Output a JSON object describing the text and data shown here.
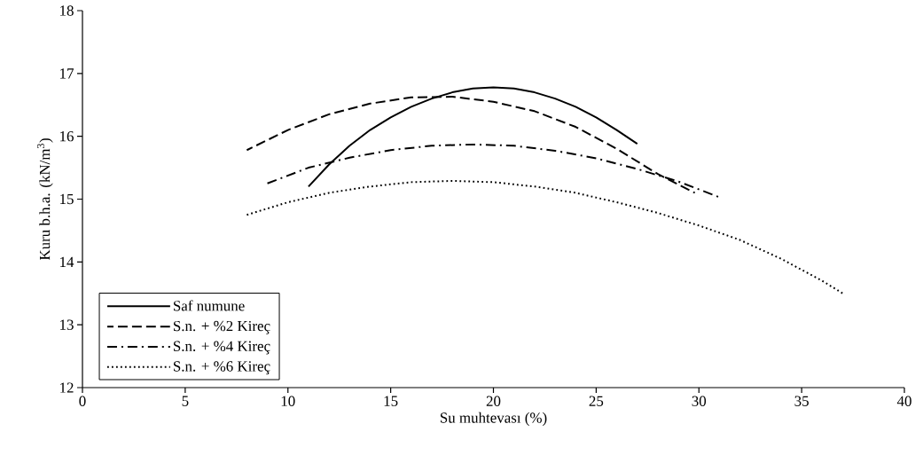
{
  "chart_data": {
    "type": "line",
    "xlabel": "Su muhtevası (%)",
    "ylabel": "Kuru b.h.a. (kN/m$^{3}$)",
    "xlim": [
      0,
      40
    ],
    "xticks": [
      0,
      5,
      10,
      15,
      20,
      25,
      30,
      35,
      40
    ],
    "ylim": [
      12,
      18
    ],
    "yticks": [
      12,
      13,
      14,
      15,
      16,
      17,
      18
    ],
    "grid": false,
    "legend": "bottom left",
    "marker": "none",
    "series": [
      {
        "name": "Saf numune",
        "color": "#000000",
        "line_style": "solid",
        "x": [
          11,
          12,
          13,
          14,
          15,
          16,
          17,
          18,
          19,
          20,
          21,
          22,
          23,
          24,
          25,
          26,
          27
        ],
        "values": [
          15.2,
          15.55,
          15.85,
          16.1,
          16.3,
          16.47,
          16.6,
          16.7,
          16.76,
          16.78,
          16.76,
          16.7,
          16.6,
          16.47,
          16.3,
          16.1,
          15.88
        ]
      },
      {
        "name": "S.n. + %2 Kireç",
        "color": "#000000",
        "line_style": "dashed",
        "x": [
          8,
          10,
          12,
          14,
          16,
          18,
          20,
          22,
          24,
          26,
          28,
          29.8
        ],
        "values": [
          15.78,
          16.1,
          16.35,
          16.52,
          16.62,
          16.63,
          16.55,
          16.4,
          16.15,
          15.8,
          15.4,
          15.1
        ]
      },
      {
        "name": "S.n. + %4 Kireç",
        "color": "#000000",
        "line_style": "dashdot",
        "x": [
          9,
          11,
          13,
          15,
          17,
          19,
          21,
          23,
          25,
          27,
          29,
          31
        ],
        "values": [
          15.25,
          15.5,
          15.66,
          15.78,
          15.85,
          15.87,
          15.85,
          15.77,
          15.65,
          15.48,
          15.28,
          15.03
        ]
      },
      {
        "name": "S.n. + %6 Kireç",
        "color": "#000000",
        "line_style": "dotted",
        "x": [
          8,
          10,
          12,
          14,
          16,
          18,
          20,
          22,
          24,
          26,
          28,
          30,
          32,
          34,
          36,
          37
        ],
        "values": [
          14.75,
          14.95,
          15.1,
          15.2,
          15.27,
          15.29,
          15.27,
          15.2,
          15.1,
          14.95,
          14.78,
          14.58,
          14.35,
          14.05,
          13.7,
          13.5
        ]
      }
    ]
  }
}
